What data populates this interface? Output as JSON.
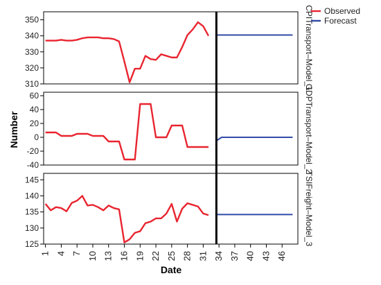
{
  "chart_data": {
    "type": "line",
    "xlabel": "Date",
    "ylabel": "Number",
    "x_ticks": [
      "1",
      "4",
      "7",
      "10",
      "13",
      "16",
      "19",
      "22",
      "25",
      "28",
      "31",
      "34",
      "37",
      "40",
      "43",
      "46"
    ],
    "x_range": [
      1,
      49
    ],
    "forecast_start": 33.5,
    "legend": {
      "position": "top-right",
      "entries": [
        {
          "label": "Observed",
          "color": "#e8242f"
        },
        {
          "label": "Forecast",
          "color": "#2f4aa6"
        }
      ]
    },
    "panels": [
      {
        "name": "CPITransport–Model_1",
        "ylim": [
          310,
          355
        ],
        "yticks": [
          310,
          320,
          330,
          340,
          350
        ],
        "observed": {
          "x": [
            1,
            2,
            3,
            4,
            5,
            6,
            7,
            8,
            9,
            10,
            11,
            12,
            13,
            14,
            15,
            16,
            17,
            18,
            19,
            20,
            21,
            22,
            23,
            24,
            25,
            26,
            27,
            28,
            29,
            30,
            31,
            32
          ],
          "y": [
            337,
            337,
            337,
            337.5,
            337,
            337,
            337.5,
            338.5,
            339,
            339,
            339,
            338.5,
            338.5,
            338,
            336.5,
            324,
            311,
            319.5,
            319.5,
            327.5,
            325.5,
            325,
            328.5,
            327.5,
            326.5,
            326.5,
            333,
            340.5,
            344,
            348.5,
            346,
            340
          ]
        },
        "forecast": {
          "x": [
            33.5,
            48
          ],
          "y": [
            340.5,
            340.5
          ]
        }
      },
      {
        "name": "GDPTransport–Model_2",
        "ylim": [
          -40,
          65
        ],
        "yticks": [
          -40,
          -20,
          0,
          20,
          40,
          60
        ],
        "observed": {
          "x": [
            1,
            2,
            3,
            4,
            5,
            6,
            7,
            8,
            9,
            10,
            11,
            12,
            13,
            14,
            15,
            16,
            17,
            18,
            19,
            20,
            21,
            22,
            23,
            24,
            25,
            26,
            27,
            28,
            29,
            30,
            31,
            32
          ],
          "y": [
            7,
            7,
            7,
            2,
            2,
            2,
            5,
            5,
            5,
            2,
            2,
            2,
            -6,
            -6,
            -6,
            -32,
            -32,
            -32,
            48,
            48,
            48,
            0,
            0,
            0,
            17,
            17,
            17,
            -14,
            -14,
            -14,
            -14,
            -14
          ]
        },
        "forecast": {
          "x": [
            33.5,
            34.5,
            48
          ],
          "y": [
            -5,
            0,
            0
          ]
        }
      },
      {
        "name": "TSIFreight–Model_3",
        "ylim": [
          125,
          147
        ],
        "yticks": [
          125,
          130,
          135,
          140,
          145
        ],
        "observed": {
          "x": [
            1,
            2,
            3,
            4,
            5,
            6,
            7,
            8,
            9,
            10,
            11,
            12,
            13,
            14,
            15,
            16,
            17,
            18,
            19,
            20,
            21,
            22,
            23,
            24,
            25,
            26,
            27,
            28,
            29,
            30,
            31,
            32
          ],
          "y": [
            137.5,
            135.5,
            136.5,
            136.2,
            135.2,
            137.8,
            138.5,
            140,
            137,
            137.2,
            136.5,
            135.5,
            137,
            136.2,
            135.8,
            125.5,
            126.5,
            128.5,
            129,
            131.5,
            132,
            133,
            133,
            134.5,
            137.5,
            132,
            136,
            137.7,
            137.2,
            136.7,
            134.5,
            134
          ]
        },
        "forecast": {
          "x": [
            33.5,
            48
          ],
          "y": [
            134.2,
            134.2
          ]
        }
      }
    ]
  }
}
